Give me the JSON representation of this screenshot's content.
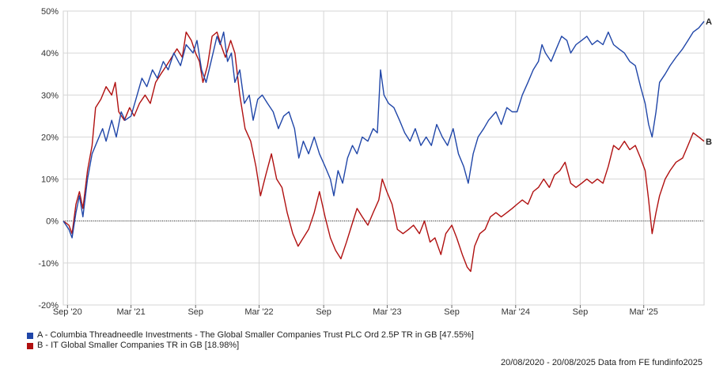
{
  "chart_data": {
    "type": "line",
    "y_unit": "%",
    "ylim": [
      -20,
      50
    ],
    "y_ticks": [
      -20,
      -10,
      0,
      10,
      20,
      30,
      40,
      50
    ],
    "y_tick_labels": [
      "-20%",
      "-10%",
      "0%",
      "10%",
      "20%",
      "30%",
      "40%",
      "50%"
    ],
    "x_range": [
      "2020-08-20",
      "2025-08-20"
    ],
    "x_ticks": [
      {
        "date": "2020-09-01",
        "label": "Sep '20"
      },
      {
        "date": "2021-03-01",
        "label": "Mar '21"
      },
      {
        "date": "2021-09-01",
        "label": "Sep"
      },
      {
        "date": "2022-03-01",
        "label": "Mar '22"
      },
      {
        "date": "2022-09-01",
        "label": "Sep"
      },
      {
        "date": "2023-03-01",
        "label": "Mar '23"
      },
      {
        "date": "2023-09-01",
        "label": "Sep"
      },
      {
        "date": "2024-03-01",
        "label": "Mar '24"
      },
      {
        "date": "2024-09-01",
        "label": "Sep"
      },
      {
        "date": "2025-03-01",
        "label": "Mar '25"
      }
    ],
    "grid": true,
    "zero_line": "dotted",
    "series": [
      {
        "id": "A",
        "name": "A - Columbia Threadneedle Investments - The Global Smaller Companies Trust PLC Ord 2.5P TR in GB [47.55%]",
        "color": "#2046a8",
        "points": [
          [
            "2020-08-20",
            0
          ],
          [
            "2020-09-05",
            -2
          ],
          [
            "2020-09-14",
            -4
          ],
          [
            "2020-09-25",
            2
          ],
          [
            "2020-10-05",
            6
          ],
          [
            "2020-10-15",
            1
          ],
          [
            "2020-10-28",
            10
          ],
          [
            "2020-11-10",
            16
          ],
          [
            "2020-11-25",
            19
          ],
          [
            "2020-12-10",
            22
          ],
          [
            "2020-12-20",
            19
          ],
          [
            "2021-01-05",
            24
          ],
          [
            "2021-01-18",
            20
          ],
          [
            "2021-02-01",
            26
          ],
          [
            "2021-02-12",
            24
          ],
          [
            "2021-03-01",
            25
          ],
          [
            "2021-03-15",
            29
          ],
          [
            "2021-04-01",
            34
          ],
          [
            "2021-04-15",
            32
          ],
          [
            "2021-05-01",
            36
          ],
          [
            "2021-05-15",
            34
          ],
          [
            "2021-06-01",
            38
          ],
          [
            "2021-06-15",
            36
          ],
          [
            "2021-07-01",
            40
          ],
          [
            "2021-07-20",
            37
          ],
          [
            "2021-08-05",
            42
          ],
          [
            "2021-08-25",
            40
          ],
          [
            "2021-09-05",
            43
          ],
          [
            "2021-09-18",
            36
          ],
          [
            "2021-10-01",
            33
          ],
          [
            "2021-10-15",
            38
          ],
          [
            "2021-11-01",
            44
          ],
          [
            "2021-11-10",
            42
          ],
          [
            "2021-11-20",
            45
          ],
          [
            "2021-12-01",
            38
          ],
          [
            "2021-12-12",
            40
          ],
          [
            "2021-12-22",
            33
          ],
          [
            "2022-01-05",
            36
          ],
          [
            "2022-01-18",
            28
          ],
          [
            "2022-02-01",
            30
          ],
          [
            "2022-02-12",
            24
          ],
          [
            "2022-02-25",
            29
          ],
          [
            "2022-03-10",
            30
          ],
          [
            "2022-03-25",
            28
          ],
          [
            "2022-04-10",
            26
          ],
          [
            "2022-04-25",
            22
          ],
          [
            "2022-05-10",
            25
          ],
          [
            "2022-05-25",
            26
          ],
          [
            "2022-06-10",
            22
          ],
          [
            "2022-06-22",
            15
          ],
          [
            "2022-07-05",
            19
          ],
          [
            "2022-07-20",
            16
          ],
          [
            "2022-08-05",
            20
          ],
          [
            "2022-08-20",
            16
          ],
          [
            "2022-09-05",
            13
          ],
          [
            "2022-09-20",
            10
          ],
          [
            "2022-09-30",
            6
          ],
          [
            "2022-10-12",
            12
          ],
          [
            "2022-10-25",
            9
          ],
          [
            "2022-11-08",
            15
          ],
          [
            "2022-11-22",
            18
          ],
          [
            "2022-12-05",
            16
          ],
          [
            "2022-12-20",
            20
          ],
          [
            "2023-01-05",
            19
          ],
          [
            "2023-01-20",
            22
          ],
          [
            "2023-02-01",
            21
          ],
          [
            "2023-02-10",
            36
          ],
          [
            "2023-02-20",
            30
          ],
          [
            "2023-03-05",
            28
          ],
          [
            "2023-03-20",
            27
          ],
          [
            "2023-04-05",
            24
          ],
          [
            "2023-04-20",
            21
          ],
          [
            "2023-05-05",
            19
          ],
          [
            "2023-05-20",
            22
          ],
          [
            "2023-06-05",
            18
          ],
          [
            "2023-06-20",
            20
          ],
          [
            "2023-07-05",
            18
          ],
          [
            "2023-07-20",
            23
          ],
          [
            "2023-08-05",
            20
          ],
          [
            "2023-08-20",
            18
          ],
          [
            "2023-09-05",
            22
          ],
          [
            "2023-09-20",
            16
          ],
          [
            "2023-10-05",
            13
          ],
          [
            "2023-10-18",
            9
          ],
          [
            "2023-11-01",
            16
          ],
          [
            "2023-11-15",
            20
          ],
          [
            "2023-12-01",
            22
          ],
          [
            "2023-12-15",
            24
          ],
          [
            "2024-01-05",
            26
          ],
          [
            "2024-01-20",
            23
          ],
          [
            "2024-02-05",
            27
          ],
          [
            "2024-02-20",
            26
          ],
          [
            "2024-03-05",
            26
          ],
          [
            "2024-03-20",
            30
          ],
          [
            "2024-04-05",
            33
          ],
          [
            "2024-04-20",
            36
          ],
          [
            "2024-05-05",
            38
          ],
          [
            "2024-05-15",
            42
          ],
          [
            "2024-05-25",
            40
          ],
          [
            "2024-06-10",
            38
          ],
          [
            "2024-06-25",
            41
          ],
          [
            "2024-07-10",
            44
          ],
          [
            "2024-07-25",
            43
          ],
          [
            "2024-08-05",
            40
          ],
          [
            "2024-08-20",
            42
          ],
          [
            "2024-09-05",
            43
          ],
          [
            "2024-09-20",
            44
          ],
          [
            "2024-10-05",
            42
          ],
          [
            "2024-10-20",
            43
          ],
          [
            "2024-11-05",
            42
          ],
          [
            "2024-11-20",
            45
          ],
          [
            "2024-12-05",
            42
          ],
          [
            "2024-12-20",
            41
          ],
          [
            "2025-01-05",
            40
          ],
          [
            "2025-01-20",
            38
          ],
          [
            "2025-02-05",
            37
          ],
          [
            "2025-02-20",
            32
          ],
          [
            "2025-03-05",
            28
          ],
          [
            "2025-03-15",
            23
          ],
          [
            "2025-03-25",
            20
          ],
          [
            "2025-04-05",
            26
          ],
          [
            "2025-04-15",
            33
          ],
          [
            "2025-05-01",
            35
          ],
          [
            "2025-05-15",
            37
          ],
          [
            "2025-06-01",
            39
          ],
          [
            "2025-06-20",
            41
          ],
          [
            "2025-07-05",
            43
          ],
          [
            "2025-07-20",
            45
          ],
          [
            "2025-08-05",
            46
          ],
          [
            "2025-08-20",
            47.55
          ]
        ]
      },
      {
        "id": "B",
        "name": "B - IT Global Smaller Companies TR in GB [18.98%]",
        "color": "#b01010",
        "points": [
          [
            "2020-08-20",
            0
          ],
          [
            "2020-09-05",
            -1
          ],
          [
            "2020-09-14",
            -3
          ],
          [
            "2020-09-25",
            4
          ],
          [
            "2020-10-05",
            7
          ],
          [
            "2020-10-15",
            3
          ],
          [
            "2020-10-28",
            12
          ],
          [
            "2020-11-10",
            18
          ],
          [
            "2020-11-20",
            27
          ],
          [
            "2020-12-05",
            29
          ],
          [
            "2020-12-20",
            32
          ],
          [
            "2021-01-05",
            30
          ],
          [
            "2021-01-15",
            33
          ],
          [
            "2021-01-25",
            26
          ],
          [
            "2021-02-10",
            24
          ],
          [
            "2021-02-25",
            27
          ],
          [
            "2021-03-10",
            25
          ],
          [
            "2021-03-25",
            28
          ],
          [
            "2021-04-10",
            30
          ],
          [
            "2021-04-25",
            28
          ],
          [
            "2021-05-10",
            33
          ],
          [
            "2021-05-25",
            35
          ],
          [
            "2021-06-10",
            37
          ],
          [
            "2021-06-25",
            39
          ],
          [
            "2021-07-10",
            41
          ],
          [
            "2021-07-25",
            39
          ],
          [
            "2021-08-05",
            45
          ],
          [
            "2021-08-20",
            43
          ],
          [
            "2021-09-01",
            40
          ],
          [
            "2021-09-12",
            38
          ],
          [
            "2021-09-22",
            33
          ],
          [
            "2021-10-05",
            37
          ],
          [
            "2021-10-18",
            44
          ],
          [
            "2021-11-01",
            45
          ],
          [
            "2021-11-12",
            42
          ],
          [
            "2021-11-25",
            39
          ],
          [
            "2021-12-10",
            43
          ],
          [
            "2021-12-22",
            40
          ],
          [
            "2022-01-05",
            30
          ],
          [
            "2022-01-20",
            22
          ],
          [
            "2022-02-05",
            19
          ],
          [
            "2022-02-20",
            13
          ],
          [
            "2022-03-05",
            6
          ],
          [
            "2022-03-20",
            11
          ],
          [
            "2022-04-05",
            16
          ],
          [
            "2022-04-20",
            10
          ],
          [
            "2022-05-05",
            8
          ],
          [
            "2022-05-20",
            2
          ],
          [
            "2022-06-05",
            -3
          ],
          [
            "2022-06-20",
            -6
          ],
          [
            "2022-07-05",
            -4
          ],
          [
            "2022-07-20",
            -2
          ],
          [
            "2022-08-05",
            2
          ],
          [
            "2022-08-20",
            7
          ],
          [
            "2022-09-05",
            1
          ],
          [
            "2022-09-20",
            -4
          ],
          [
            "2022-10-05",
            -7
          ],
          [
            "2022-10-20",
            -9
          ],
          [
            "2022-11-05",
            -5
          ],
          [
            "2022-11-20",
            -1
          ],
          [
            "2022-12-05",
            3
          ],
          [
            "2022-12-20",
            1
          ],
          [
            "2023-01-05",
            -1
          ],
          [
            "2023-01-20",
            2
          ],
          [
            "2023-02-05",
            5
          ],
          [
            "2023-02-15",
            10
          ],
          [
            "2023-02-28",
            7
          ],
          [
            "2023-03-15",
            4
          ],
          [
            "2023-03-30",
            -2
          ],
          [
            "2023-04-15",
            -3
          ],
          [
            "2023-05-01",
            -2
          ],
          [
            "2023-05-15",
            -1
          ],
          [
            "2023-06-01",
            -3
          ],
          [
            "2023-06-15",
            0
          ],
          [
            "2023-07-01",
            -5
          ],
          [
            "2023-07-15",
            -4
          ],
          [
            "2023-08-01",
            -8
          ],
          [
            "2023-08-15",
            -3
          ],
          [
            "2023-09-01",
            -1
          ],
          [
            "2023-09-15",
            -4
          ],
          [
            "2023-10-01",
            -8
          ],
          [
            "2023-10-15",
            -11
          ],
          [
            "2023-10-25",
            -12
          ],
          [
            "2023-11-05",
            -6
          ],
          [
            "2023-11-20",
            -3
          ],
          [
            "2023-12-05",
            -2
          ],
          [
            "2023-12-20",
            1
          ],
          [
            "2024-01-05",
            2
          ],
          [
            "2024-01-20",
            1
          ],
          [
            "2024-02-05",
            2
          ],
          [
            "2024-02-20",
            3
          ],
          [
            "2024-03-05",
            4
          ],
          [
            "2024-03-20",
            5
          ],
          [
            "2024-04-05",
            4
          ],
          [
            "2024-04-20",
            7
          ],
          [
            "2024-05-05",
            8
          ],
          [
            "2024-05-20",
            10
          ],
          [
            "2024-06-05",
            8
          ],
          [
            "2024-06-20",
            11
          ],
          [
            "2024-07-05",
            12
          ],
          [
            "2024-07-20",
            14
          ],
          [
            "2024-08-05",
            9
          ],
          [
            "2024-08-20",
            8
          ],
          [
            "2024-09-05",
            9
          ],
          [
            "2024-09-20",
            10
          ],
          [
            "2024-10-05",
            9
          ],
          [
            "2024-10-20",
            10
          ],
          [
            "2024-11-05",
            9
          ],
          [
            "2024-11-20",
            13
          ],
          [
            "2024-12-05",
            18
          ],
          [
            "2024-12-20",
            17
          ],
          [
            "2025-01-05",
            19
          ],
          [
            "2025-01-20",
            17
          ],
          [
            "2025-02-05",
            18
          ],
          [
            "2025-02-20",
            15
          ],
          [
            "2025-03-05",
            12
          ],
          [
            "2025-03-15",
            5
          ],
          [
            "2025-03-25",
            -3
          ],
          [
            "2025-04-05",
            2
          ],
          [
            "2025-04-15",
            6
          ],
          [
            "2025-05-01",
            10
          ],
          [
            "2025-05-15",
            12
          ],
          [
            "2025-06-01",
            14
          ],
          [
            "2025-06-20",
            15
          ],
          [
            "2025-07-05",
            18
          ],
          [
            "2025-07-20",
            21
          ],
          [
            "2025-08-05",
            20
          ],
          [
            "2025-08-20",
            18.98
          ]
        ]
      }
    ]
  },
  "legend": {
    "a_label": "A - Columbia Threadneedle Investments - The Global Smaller Companies Trust PLC Ord 2.5P TR in GB [47.55%]",
    "a_color": "#2046a8",
    "b_label": "B - IT Global Smaller Companies TR in GB [18.98%]",
    "b_color": "#b01010"
  },
  "end_labels": {
    "a": "A",
    "b": "B"
  },
  "footer": "20/08/2020 - 20/08/2025 Data from FE fundinfo2025"
}
